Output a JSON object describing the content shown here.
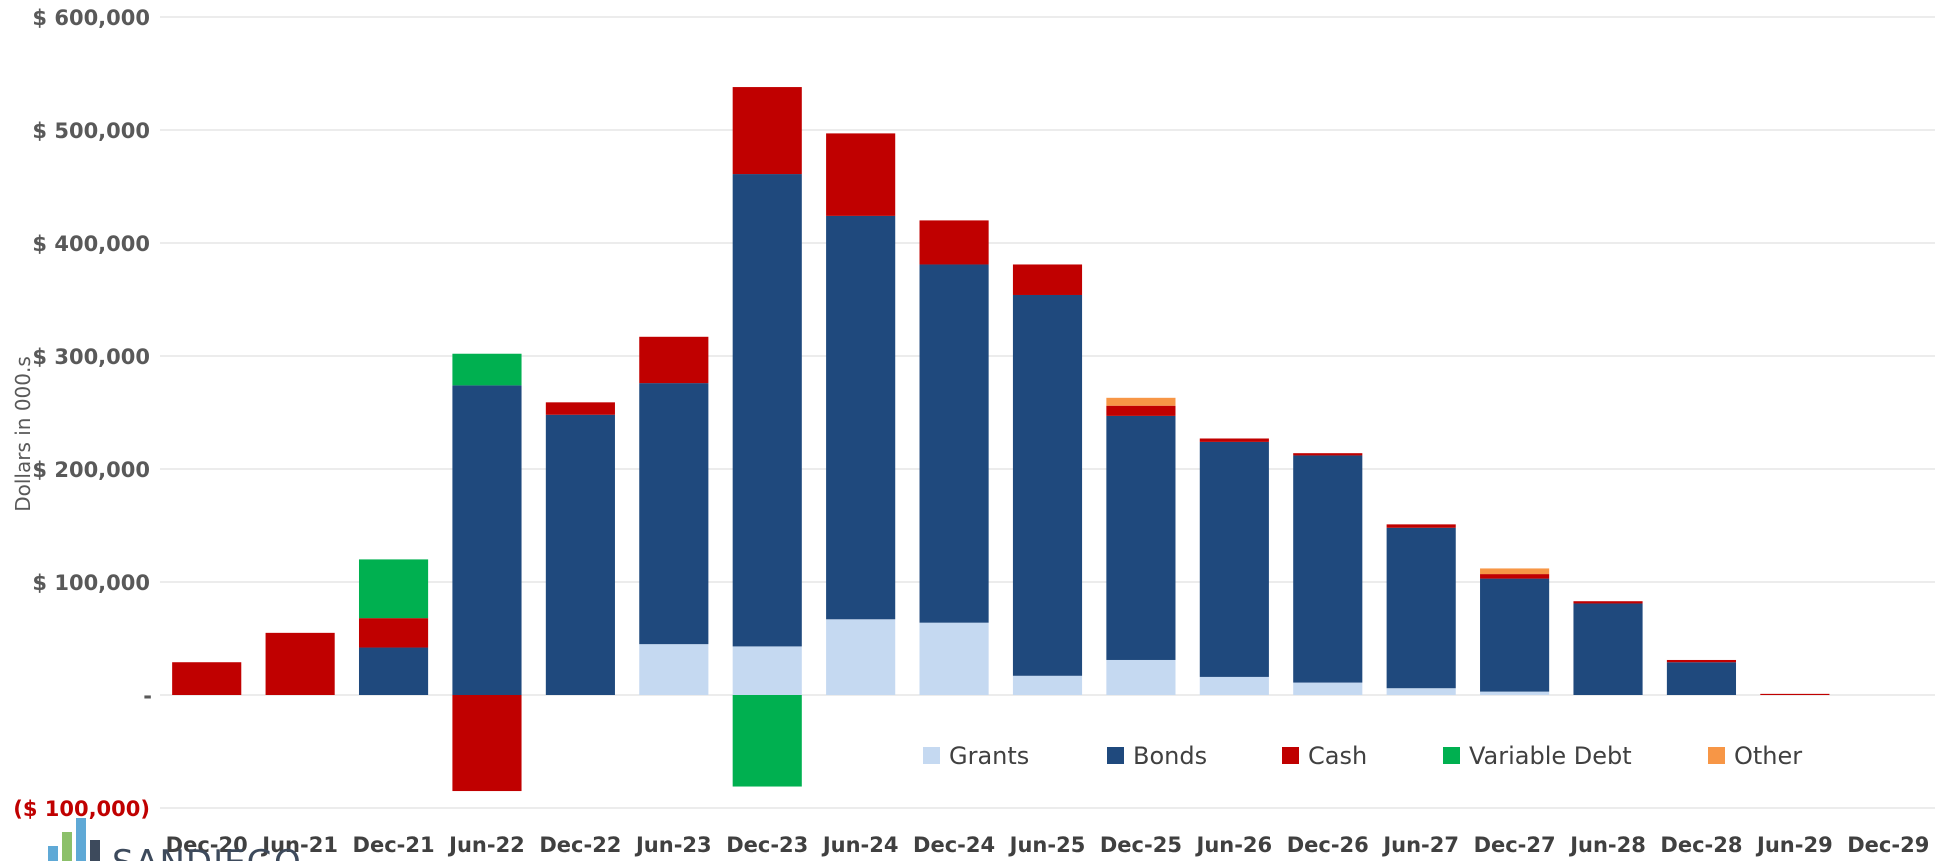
{
  "chart_data": {
    "type": "bar",
    "stacked": true,
    "ylabel": "Dollars in 000.s",
    "ylim": [
      -100000,
      600000
    ],
    "y_ticks": [
      {
        "value": 600000,
        "label": "$ 600,000"
      },
      {
        "value": 500000,
        "label": "$ 500,000"
      },
      {
        "value": 400000,
        "label": "$ 400,000"
      },
      {
        "value": 300000,
        "label": "$ 300,000"
      },
      {
        "value": 200000,
        "label": "$ 200,000"
      },
      {
        "value": 100000,
        "label": "$ 100,000"
      },
      {
        "value": 0,
        "label": "-"
      },
      {
        "value": -100000,
        "label": "($ 100,000)"
      }
    ],
    "grid": true,
    "legend_position": "bottom-right",
    "categories": [
      "Dec-20",
      "Jun-21",
      "Dec-21",
      "Jun-22",
      "Dec-22",
      "Jun-23",
      "Dec-23",
      "Jun-24",
      "Dec-24",
      "Jun-25",
      "Dec-25",
      "Jun-26",
      "Dec-26",
      "Jun-27",
      "Dec-27",
      "Jun-28",
      "Dec-28",
      "Jun-29",
      "Dec-29"
    ],
    "series": [
      {
        "name": "Grants",
        "color": "#c5d9f1",
        "values": [
          0,
          0,
          0,
          0,
          0,
          45000,
          43000,
          67000,
          64000,
          17000,
          31000,
          16000,
          11000,
          6000,
          3000,
          0,
          0,
          0,
          0
        ]
      },
      {
        "name": "Bonds",
        "color": "#1f497d",
        "values": [
          0,
          0,
          42000,
          274000,
          248000,
          231000,
          418000,
          357000,
          317000,
          337000,
          216000,
          208000,
          201000,
          142000,
          100000,
          81000,
          29000,
          0,
          0
        ]
      },
      {
        "name": "Cash",
        "color": "#c00000",
        "values": [
          29000,
          55000,
          26000,
          -85000,
          11000,
          41000,
          77000,
          73000,
          39000,
          27000,
          9000,
          3000,
          2000,
          3000,
          4000,
          2000,
          2000,
          1000,
          0
        ]
      },
      {
        "name": "Variable Debt",
        "color": "#00b050",
        "values": [
          0,
          0,
          52000,
          28000,
          0,
          0,
          -81000,
          0,
          0,
          0,
          0,
          0,
          0,
          0,
          0,
          0,
          0,
          0,
          0
        ]
      },
      {
        "name": "Other",
        "color": "#f79646",
        "values": [
          0,
          0,
          0,
          0,
          0,
          0,
          0,
          0,
          0,
          0,
          7000,
          0,
          0,
          0,
          5000,
          0,
          0,
          0,
          0
        ]
      }
    ]
  },
  "logo": {
    "text": "SANDIEGO"
  }
}
